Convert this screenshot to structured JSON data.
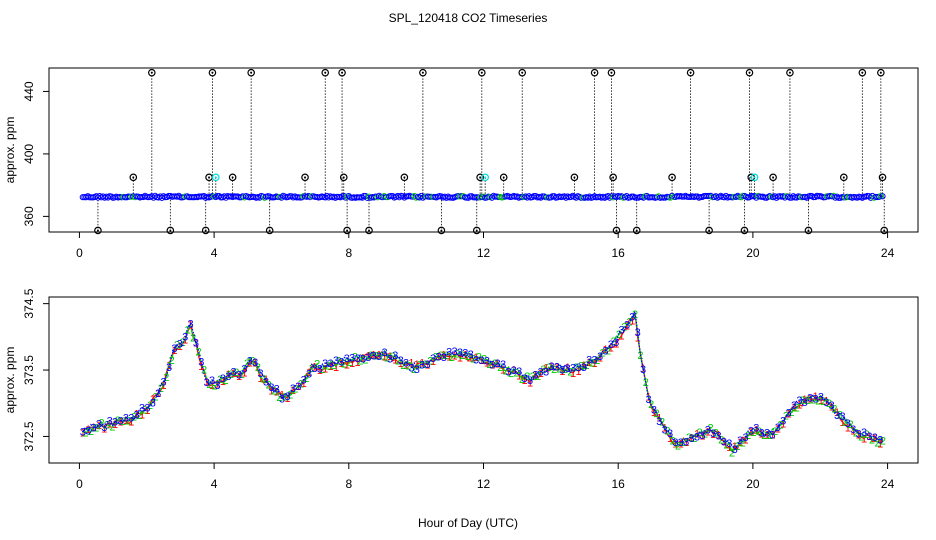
{
  "figure": {
    "title": "SPL_120418  CO2 Timeseries",
    "xlabel": "Hour of Day (UTC)"
  },
  "chart_data": [
    {
      "type": "scatter",
      "xlabel": "",
      "ylabel": "approx. ppm",
      "xlim": [
        0,
        24
      ],
      "ylim": [
        350,
        455
      ],
      "x_ticks": [
        0,
        4,
        8,
        12,
        16,
        20,
        24
      ],
      "x_tick_labels": [
        "0",
        "4",
        "8",
        "12",
        "16",
        "20",
        "24"
      ],
      "y_ticks": [
        360,
        400,
        440
      ],
      "y_tick_labels": [
        "360",
        "400",
        "440"
      ],
      "grid": false,
      "legend": "none",
      "colors": {
        "baseline": "#0000ff",
        "baseline_alt": "#00cc00",
        "outlier": "#000000",
        "highlight": "#00dddd",
        "accent": "#ff8c00"
      },
      "baseline_range": [
        0.1,
        23.9
      ],
      "baseline_level": 372.5,
      "spikes": [
        {
          "x": 0.55,
          "y": 351
        },
        {
          "x": 1.6,
          "y": 385
        },
        {
          "x": 2.15,
          "y": 452
        },
        {
          "x": 2.7,
          "y": 351
        },
        {
          "x": 3.75,
          "y": 351
        },
        {
          "x": 3.85,
          "y": 385
        },
        {
          "x": 3.95,
          "y": 452
        },
        {
          "x": 4.05,
          "y": 385
        },
        {
          "x": 4.55,
          "y": 385
        },
        {
          "x": 5.1,
          "y": 452
        },
        {
          "x": 5.65,
          "y": 351
        },
        {
          "x": 6.7,
          "y": 385
        },
        {
          "x": 7.3,
          "y": 452
        },
        {
          "x": 7.8,
          "y": 452
        },
        {
          "x": 7.85,
          "y": 385
        },
        {
          "x": 7.95,
          "y": 351
        },
        {
          "x": 8.6,
          "y": 351
        },
        {
          "x": 9.65,
          "y": 385
        },
        {
          "x": 10.2,
          "y": 452
        },
        {
          "x": 10.75,
          "y": 351
        },
        {
          "x": 11.8,
          "y": 351
        },
        {
          "x": 11.9,
          "y": 385
        },
        {
          "x": 11.95,
          "y": 452
        },
        {
          "x": 12.05,
          "y": 385
        },
        {
          "x": 12.6,
          "y": 385
        },
        {
          "x": 13.15,
          "y": 452
        },
        {
          "x": 14.7,
          "y": 385
        },
        {
          "x": 15.3,
          "y": 452
        },
        {
          "x": 15.8,
          "y": 452
        },
        {
          "x": 15.85,
          "y": 385
        },
        {
          "x": 15.95,
          "y": 351
        },
        {
          "x": 16.55,
          "y": 351
        },
        {
          "x": 17.6,
          "y": 385
        },
        {
          "x": 18.15,
          "y": 452
        },
        {
          "x": 18.7,
          "y": 351
        },
        {
          "x": 19.75,
          "y": 351
        },
        {
          "x": 19.9,
          "y": 452
        },
        {
          "x": 19.95,
          "y": 385
        },
        {
          "x": 20.05,
          "y": 385
        },
        {
          "x": 20.6,
          "y": 385
        },
        {
          "x": 21.1,
          "y": 452
        },
        {
          "x": 21.65,
          "y": 351
        },
        {
          "x": 22.7,
          "y": 385
        },
        {
          "x": 23.25,
          "y": 452
        },
        {
          "x": 23.8,
          "y": 452
        },
        {
          "x": 23.85,
          "y": 385
        },
        {
          "x": 23.9,
          "y": 351
        }
      ]
    },
    {
      "type": "line",
      "xlabel": "Hour of Day (UTC)",
      "ylabel": "approx. ppm",
      "xlim": [
        0,
        24
      ],
      "ylim": [
        372.1,
        374.6
      ],
      "x_ticks": [
        0,
        4,
        8,
        12,
        16,
        20,
        24
      ],
      "x_tick_labels": [
        "0",
        "4",
        "8",
        "12",
        "16",
        "20",
        "24"
      ],
      "y_ticks": [
        372.5,
        373.5,
        374.5
      ],
      "y_tick_labels": [
        "372.5",
        "373.5",
        "374.5"
      ],
      "grid": false,
      "legend": "none",
      "series": [
        {
          "name": "",
          "marker": "1",
          "color": "#ff0000"
        },
        {
          "name": "",
          "marker": "2",
          "color": "#00cc00"
        },
        {
          "name": "",
          "marker": "3",
          "color": "#0000ff"
        }
      ],
      "x": [
        0.1,
        0.5,
        1.0,
        1.5,
        1.9,
        2.2,
        2.5,
        2.8,
        3.1,
        3.3,
        3.5,
        3.8,
        4.1,
        4.5,
        4.8,
        5.1,
        5.4,
        5.7,
        6.0,
        6.3,
        6.6,
        6.9,
        7.2,
        7.6,
        8.0,
        8.5,
        9.0,
        9.5,
        10.0,
        10.5,
        11.0,
        11.5,
        12.0,
        12.5,
        13.0,
        13.4,
        13.8,
        14.2,
        14.6,
        15.0,
        15.4,
        15.8,
        16.2,
        16.5,
        16.7,
        16.9,
        17.1,
        17.4,
        17.7,
        18.0,
        18.4,
        18.8,
        19.1,
        19.4,
        19.7,
        20.0,
        20.4,
        20.8,
        21.2,
        21.6,
        22.0,
        22.4,
        22.8,
        23.2,
        23.6,
        23.9
      ],
      "y": [
        372.6,
        372.65,
        372.7,
        372.75,
        372.9,
        373.05,
        373.3,
        373.8,
        373.9,
        374.2,
        373.8,
        373.3,
        373.3,
        373.45,
        373.4,
        373.7,
        373.4,
        373.25,
        373.1,
        373.15,
        373.3,
        373.55,
        373.55,
        373.6,
        373.65,
        373.7,
        373.75,
        373.65,
        373.55,
        373.65,
        373.75,
        373.7,
        373.65,
        373.55,
        373.45,
        373.35,
        373.5,
        373.55,
        373.5,
        373.55,
        373.7,
        373.85,
        374.15,
        374.35,
        373.6,
        373.1,
        372.85,
        372.6,
        372.4,
        372.45,
        372.55,
        372.6,
        372.45,
        372.3,
        372.45,
        372.6,
        372.5,
        372.65,
        372.95,
        373.05,
        373.1,
        372.9,
        372.7,
        372.55,
        372.45,
        372.45
      ]
    }
  ]
}
